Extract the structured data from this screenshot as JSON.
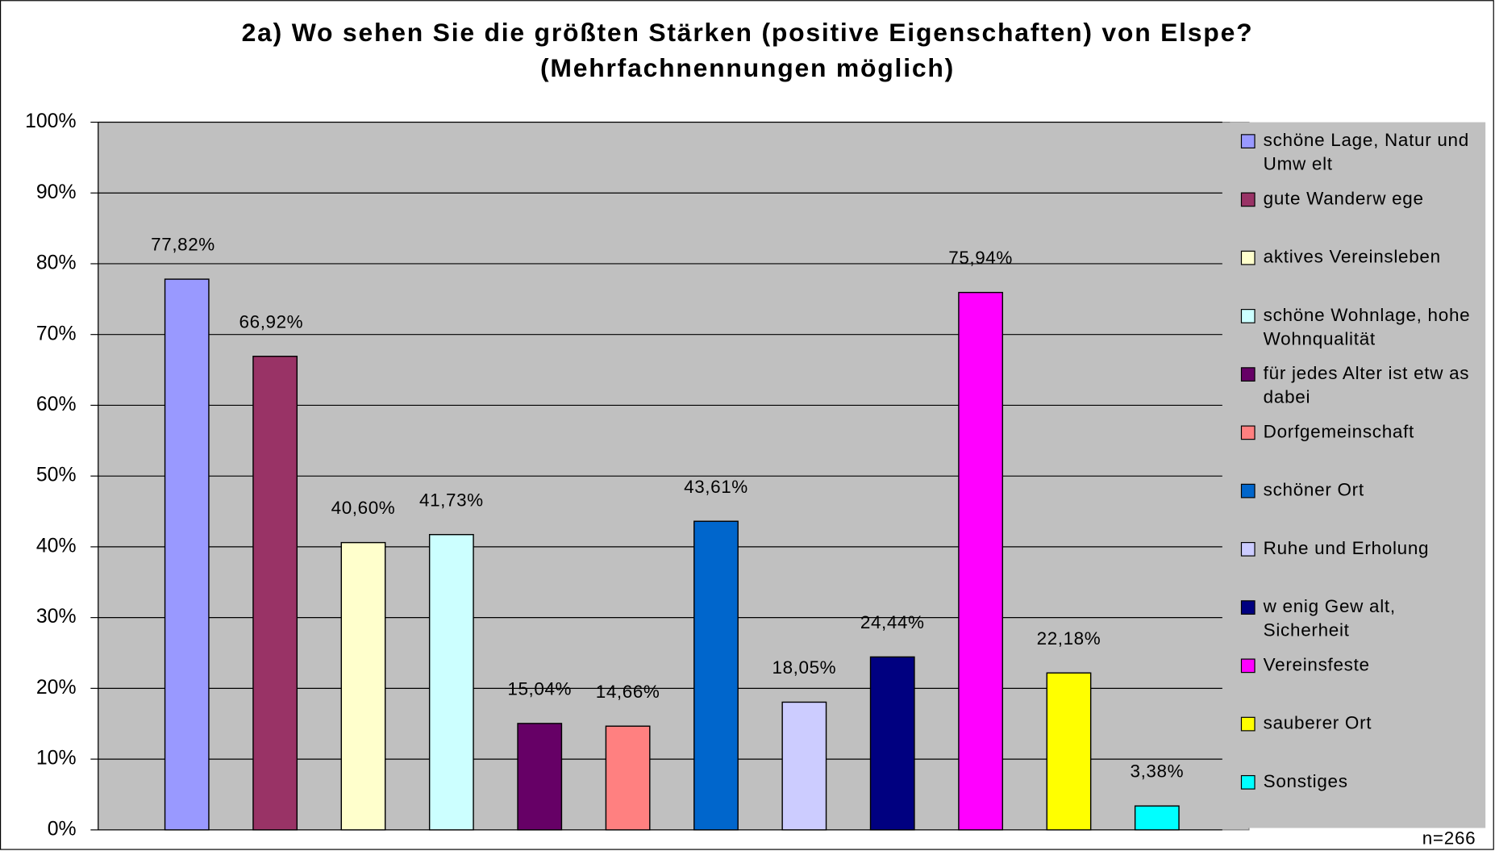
{
  "chart_data": {
    "type": "bar",
    "title": "2a) Wo sehen Sie die größten Stärken (positive Eigenschaften) von Elspe?",
    "subtitle": "(Mehrfachnennungen möglich)",
    "annotation": "n=266",
    "series": [
      {
        "name": "schöne Lage, Natur und Umw elt",
        "color": "#9999ff",
        "values": [
          77.82
        ],
        "value_labels": [
          "77,82%"
        ]
      },
      {
        "name": "gute Wanderw ege",
        "color": "#993366",
        "values": [
          66.92
        ],
        "value_labels": [
          "66,92%"
        ]
      },
      {
        "name": "aktives Vereinsleben",
        "color": "#ffffcc",
        "values": [
          40.6
        ],
        "value_labels": [
          "40,60%"
        ]
      },
      {
        "name": "schöne Wohnlage, hohe Wohnqualität",
        "color": "#ccffff",
        "values": [
          41.73
        ],
        "value_labels": [
          "41,73%"
        ]
      },
      {
        "name": "für jedes Alter ist etw as dabei",
        "color": "#660066",
        "values": [
          15.04
        ],
        "value_labels": [
          "15,04%"
        ]
      },
      {
        "name": "Dorfgemeinschaft",
        "color": "#ff8080",
        "values": [
          14.66
        ],
        "value_labels": [
          "14,66%"
        ]
      },
      {
        "name": "schöner Ort",
        "color": "#0066cc",
        "values": [
          43.61
        ],
        "value_labels": [
          "43,61%"
        ]
      },
      {
        "name": "Ruhe und Erholung",
        "color": "#ccccff",
        "values": [
          18.05
        ],
        "value_labels": [
          "18,05%"
        ]
      },
      {
        "name": "w enig Gew alt, Sicherheit",
        "color": "#000080",
        "values": [
          24.44
        ],
        "value_labels": [
          "24,44%"
        ]
      },
      {
        "name": "Vereinsfeste",
        "color": "#ff00ff",
        "values": [
          75.94
        ],
        "value_labels": [
          "75,94%"
        ]
      },
      {
        "name": "sauberer Ort",
        "color": "#ffff00",
        "values": [
          22.18
        ],
        "value_labels": [
          "22,18%"
        ]
      },
      {
        "name": "Sonstiges",
        "color": "#00ffff",
        "values": [
          3.38
        ],
        "value_labels": [
          "3,38%"
        ]
      }
    ],
    "ylim": [
      0,
      100
    ],
    "yticks": [
      {
        "value": 0,
        "label": "0%"
      },
      {
        "value": 10,
        "label": "10%"
      },
      {
        "value": 20,
        "label": "20%"
      },
      {
        "value": 30,
        "label": "30%"
      },
      {
        "value": 40,
        "label": "40%"
      },
      {
        "value": 50,
        "label": "50%"
      },
      {
        "value": 60,
        "label": "60%"
      },
      {
        "value": 70,
        "label": "70%"
      },
      {
        "value": 80,
        "label": "80%"
      },
      {
        "value": 90,
        "label": "90%"
      },
      {
        "value": 100,
        "label": "100%"
      }
    ],
    "grid": true,
    "legend": "right"
  }
}
